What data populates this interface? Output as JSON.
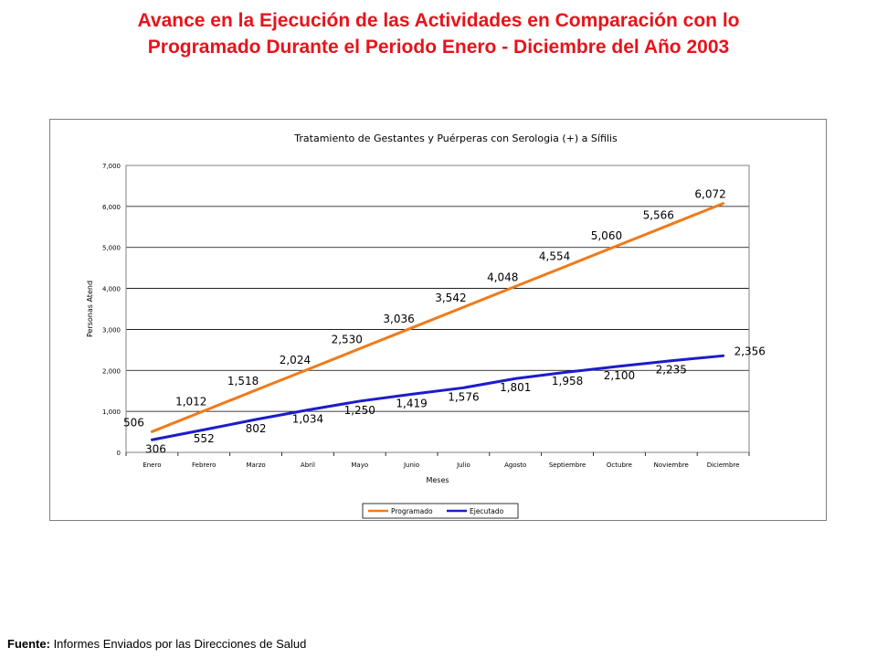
{
  "page": {
    "title_line1": "Avance en la Ejecución de las Actividades en Comparación con lo",
    "title_line2": "Programado Durante el Periodo Enero - Diciembre del Año 2003",
    "source_label": "Fuente:",
    "source_text": " Informes Enviados por las Direcciones de Salud"
  },
  "colors": {
    "page_title": "#e8131b",
    "programado": "#f07a1a",
    "ejecutado": "#1c1ccc",
    "gridline": "#000000"
  },
  "chart_data": {
    "type": "line",
    "title": "Tratamiento de Gestantes y Puérperas con Serologia (+) a Sífilis",
    "xlabel": "Meses",
    "ylabel": "Personas Atend",
    "ylim": [
      0,
      7000
    ],
    "yticks": [
      0,
      1000,
      2000,
      3000,
      4000,
      5000,
      6000,
      7000
    ],
    "ytick_labels": [
      "0",
      "1,000",
      "2,000",
      "3,000",
      "4,000",
      "5,000",
      "6,000",
      "7,000"
    ],
    "grid": true,
    "legend_position": "bottom",
    "categories": [
      "Enero",
      "Febrero",
      "Marzo",
      "Abril",
      "Mayo",
      "Junio",
      "Julio",
      "Agosto",
      "Septiembre",
      "Octubre",
      "Noviembre",
      "Diciembre"
    ],
    "series": [
      {
        "name": "Programado",
        "color": "#f07a1a",
        "values": [
          506,
          1012,
          1518,
          2024,
          2530,
          3036,
          3542,
          4048,
          4554,
          5060,
          5566,
          6072
        ],
        "labels": [
          "506",
          "1,012",
          "1,518",
          "2,024",
          "2,530",
          "3,036",
          "3,542",
          "4,048",
          "4,554",
          "5,060",
          "5,566",
          "6,072"
        ]
      },
      {
        "name": "Ejecutado",
        "color": "#1c1ccc",
        "values": [
          306,
          552,
          802,
          1034,
          1250,
          1419,
          1576,
          1801,
          1958,
          2100,
          2235,
          2356
        ],
        "labels": [
          "306",
          "552",
          "802",
          "1,034",
          "1,250",
          "1,419",
          "1,576",
          "1,801",
          "1,958",
          "2,100",
          "2,235",
          "2,356"
        ]
      }
    ]
  }
}
